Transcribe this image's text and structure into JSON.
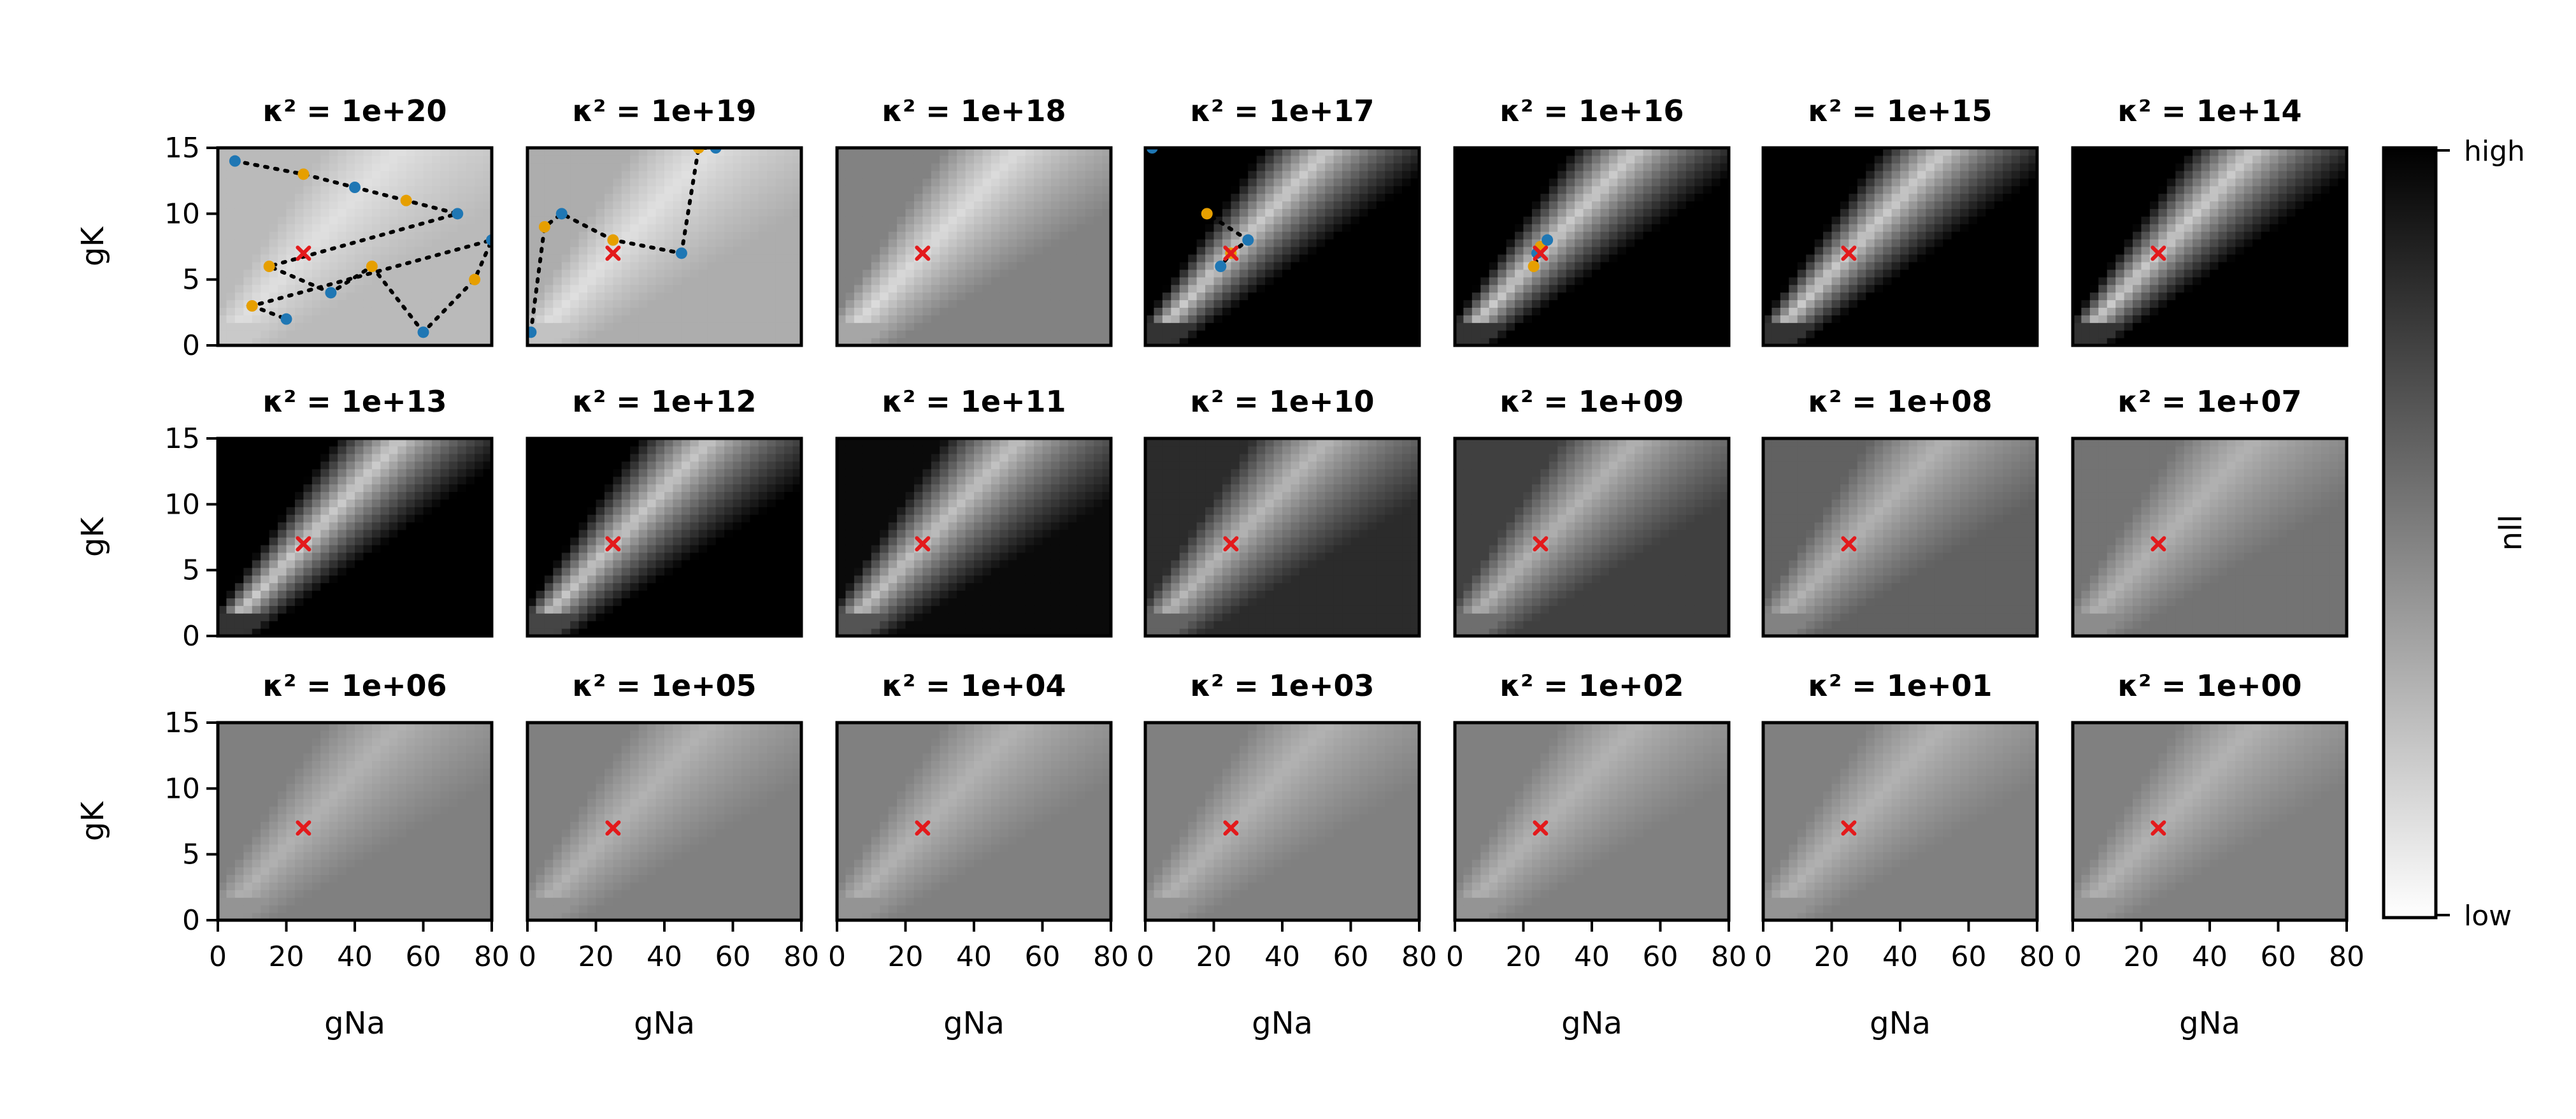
{
  "figure": {
    "colorbar": {
      "label": "nll",
      "high_label": "high",
      "low_label": "low",
      "colormap": [
        "#ffffff",
        "#000000"
      ]
    },
    "marker_color": "#e31a1c",
    "trace_colors": [
      "#1f77b4",
      "#e69f00",
      "#000000"
    ]
  },
  "chart_data": {
    "type": "heatmap",
    "xlabel": "gNa",
    "ylabel": "gK",
    "xlim": [
      0,
      80
    ],
    "ylim": [
      0,
      15
    ],
    "xticks": [
      "0",
      "20",
      "40",
      "60",
      "80"
    ],
    "yticks": [
      "0",
      "5",
      "10",
      "15"
    ],
    "true_parameters": {
      "gNa": 25,
      "gK": 7
    },
    "grid": false,
    "panels": [
      {
        "title": "κ² = 1e+20",
        "kappa2": 1e+20,
        "contrast": 0.15,
        "background": 0.12
      },
      {
        "title": "κ² = 1e+19",
        "kappa2": 1e+19,
        "contrast": 0.2,
        "background": 0.12
      },
      {
        "title": "κ² = 1e+18",
        "kappa2": 1e+18,
        "contrast": 0.35,
        "background": 0.14
      },
      {
        "title": "κ² = 1e+17",
        "kappa2": 1e+17,
        "contrast": 1.0,
        "background": 0.2
      },
      {
        "title": "κ² = 1e+16",
        "kappa2": 1e+16,
        "contrast": 1.0,
        "background": 0.2
      },
      {
        "title": "κ² = 1e+15",
        "kappa2": 1000000000000000.0,
        "contrast": 1.0,
        "background": 0.2
      },
      {
        "title": "κ² = 1e+14",
        "kappa2": 100000000000000.0,
        "contrast": 1.0,
        "background": 0.2
      },
      {
        "title": "κ² = 1e+13",
        "kappa2": 10000000000000.0,
        "contrast": 1.0,
        "background": 0.2
      },
      {
        "title": "κ² = 1e+12",
        "kappa2": 1000000000000.0,
        "contrast": 0.85,
        "background": 0.22
      },
      {
        "title": "κ² = 1e+11",
        "kappa2": 100000000000.0,
        "contrast": 0.72,
        "background": 0.24
      },
      {
        "title": "κ² = 1e+10",
        "kappa2": 10000000000.0,
        "contrast": 0.55,
        "background": 0.28
      },
      {
        "title": "κ² = 1e+09",
        "kappa2": 1000000000.0,
        "contrast": 0.45,
        "background": 0.3
      },
      {
        "title": "κ² = 1e+08",
        "kappa2": 100000000.0,
        "contrast": 0.32,
        "background": 0.3
      },
      {
        "title": "κ² = 1e+07",
        "kappa2": 10000000.0,
        "contrast": 0.25,
        "background": 0.3
      },
      {
        "title": "κ² = 1e+06",
        "kappa2": 1000000.0,
        "contrast": 0.2,
        "background": 0.3
      },
      {
        "title": "κ² = 1e+05",
        "kappa2": 100000.0,
        "contrast": 0.2,
        "background": 0.3
      },
      {
        "title": "κ² = 1e+04",
        "kappa2": 10000.0,
        "contrast": 0.2,
        "background": 0.3
      },
      {
        "title": "κ² = 1e+03",
        "kappa2": 1000.0,
        "contrast": 0.2,
        "background": 0.3
      },
      {
        "title": "κ² = 1e+02",
        "kappa2": 100.0,
        "contrast": 0.2,
        "background": 0.3
      },
      {
        "title": "κ² = 1e+01",
        "kappa2": 10.0,
        "contrast": 0.2,
        "background": 0.3
      },
      {
        "title": "κ² = 1e+00",
        "kappa2": 1.0,
        "contrast": 0.2,
        "background": 0.3
      }
    ],
    "optimizer_traces": [
      {
        "panel": 0,
        "points": [
          [
            5,
            14
          ],
          [
            25,
            13
          ],
          [
            40,
            12
          ],
          [
            55,
            11
          ],
          [
            70,
            10
          ],
          [
            15,
            6
          ],
          [
            33,
            4
          ],
          [
            45,
            6
          ],
          [
            60,
            1
          ],
          [
            75,
            5
          ],
          [
            80,
            8
          ],
          [
            10,
            3
          ],
          [
            20,
            2
          ]
        ]
      },
      {
        "panel": 1,
        "points": [
          [
            1,
            1
          ],
          [
            5,
            9
          ],
          [
            10,
            10
          ],
          [
            25,
            8
          ],
          [
            45,
            7
          ],
          [
            50,
            15
          ],
          [
            55,
            15
          ]
        ]
      },
      {
        "panel": 3,
        "points": [
          [
            2,
            15
          ],
          [
            18,
            10
          ],
          [
            30,
            8
          ],
          [
            25,
            7
          ],
          [
            22,
            6
          ]
        ]
      },
      {
        "panel": 4,
        "points": [
          [
            24,
            7
          ],
          [
            25,
            7.5
          ],
          [
            27,
            8
          ],
          [
            23,
            6
          ]
        ]
      }
    ]
  }
}
